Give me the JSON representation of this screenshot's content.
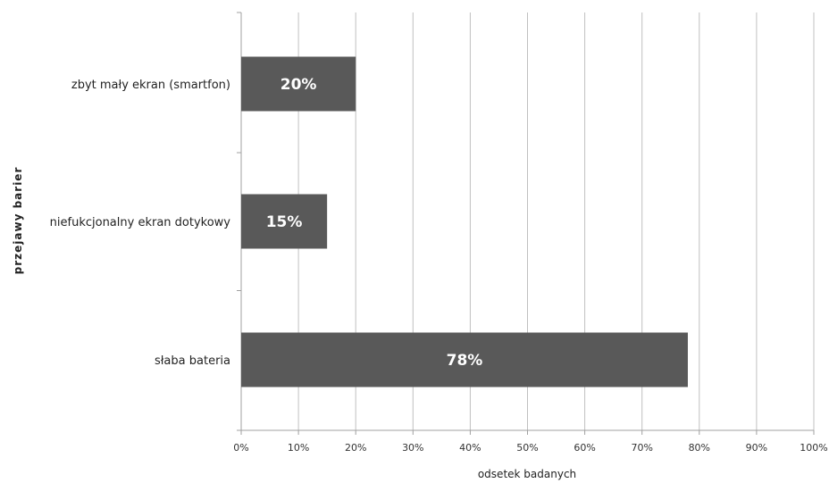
{
  "chart_data": {
    "type": "bar",
    "orientation": "horizontal",
    "categories": [
      "zbyt mały ekran (smartfon)",
      "niefukcjonalny ekran dotykowy",
      "słaba bateria"
    ],
    "values": [
      20,
      15,
      78
    ],
    "value_labels": [
      "20%",
      "15%",
      "78%"
    ],
    "xlabel": "odsetek badanych",
    "ylabel": "przejawy barier",
    "xlim": [
      0,
      100
    ],
    "xticks": [
      "0%",
      "10%",
      "20%",
      "30%",
      "40%",
      "50%",
      "60%",
      "70%",
      "80%",
      "90%",
      "100%"
    ],
    "grid": true,
    "legend": "none",
    "colors": {
      "bar": "#595959",
      "grid": "#c0c0c0",
      "bar_text": "#ffffff"
    }
  }
}
